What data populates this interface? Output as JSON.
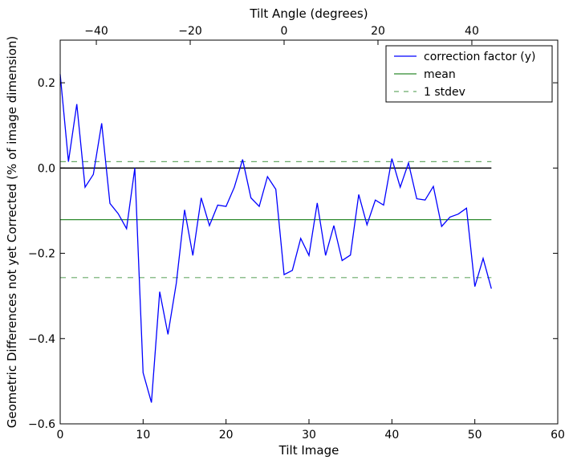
{
  "chart_data": {
    "type": "line",
    "xlabel": "Tilt Image",
    "ylabel": "Geometric Differences not yet Corrected (% of image dimension)",
    "top_xlabel": "Tilt Angle (degrees)",
    "xlim": [
      0,
      60
    ],
    "ylim": [
      -0.6,
      0.3
    ],
    "top_xlim": [
      -47.7,
      58.3
    ],
    "xticks": [
      0,
      10,
      20,
      30,
      40,
      50,
      60
    ],
    "yticks": [
      -0.6,
      -0.4,
      -0.2,
      0.0,
      0.2
    ],
    "ytick_labels": [
      "−0.6",
      "−0.4",
      "−0.2",
      "0.0",
      "0.2"
    ],
    "top_xticks": [
      -40,
      -20,
      0,
      20,
      40
    ],
    "top_xtick_labels": [
      "−40",
      "−20",
      "0",
      "20",
      "40"
    ],
    "grid": false,
    "legend_placement": "top-right",
    "series": [
      {
        "name": "correction factor (y)",
        "color": "#0000ff",
        "x": [
          0,
          1,
          2,
          3,
          4,
          5,
          6,
          7,
          8,
          9,
          10,
          11,
          12,
          13,
          14,
          15,
          16,
          17,
          18,
          19,
          20,
          21,
          22,
          23,
          24,
          25,
          26,
          27,
          28,
          29,
          30,
          31,
          32,
          33,
          34,
          35,
          36,
          37,
          38,
          39,
          40,
          41,
          42,
          43,
          44,
          45,
          46,
          47,
          48,
          49,
          50,
          51,
          52
        ],
        "y": [
          0.22,
          0.015,
          0.15,
          -0.045,
          -0.015,
          0.105,
          -0.083,
          -0.107,
          -0.142,
          0.0,
          -0.48,
          -0.55,
          -0.29,
          -0.39,
          -0.27,
          -0.098,
          -0.205,
          -0.07,
          -0.135,
          -0.087,
          -0.09,
          -0.045,
          0.02,
          -0.07,
          -0.09,
          -0.02,
          -0.05,
          -0.25,
          -0.24,
          -0.165,
          -0.205,
          -0.082,
          -0.205,
          -0.135,
          -0.217,
          -0.204,
          -0.062,
          -0.133,
          -0.075,
          -0.087,
          0.022,
          -0.045,
          0.012,
          -0.072,
          -0.075,
          -0.043,
          -0.137,
          -0.115,
          -0.108,
          -0.094,
          -0.278,
          -0.212,
          -0.283
        ]
      },
      {
        "name": "mean",
        "color": "#2e8b2e",
        "y_const": -0.121,
        "x_range": [
          0,
          52
        ]
      },
      {
        "name": "1 stdev",
        "color": "#6aaa6a",
        "style": "dashed",
        "y_const": [
          0.015,
          -0.257
        ],
        "x_range": [
          0,
          52
        ]
      }
    ],
    "zero_line": {
      "y": 0.0,
      "x_range": [
        0,
        52
      ],
      "color": "#000000"
    }
  }
}
